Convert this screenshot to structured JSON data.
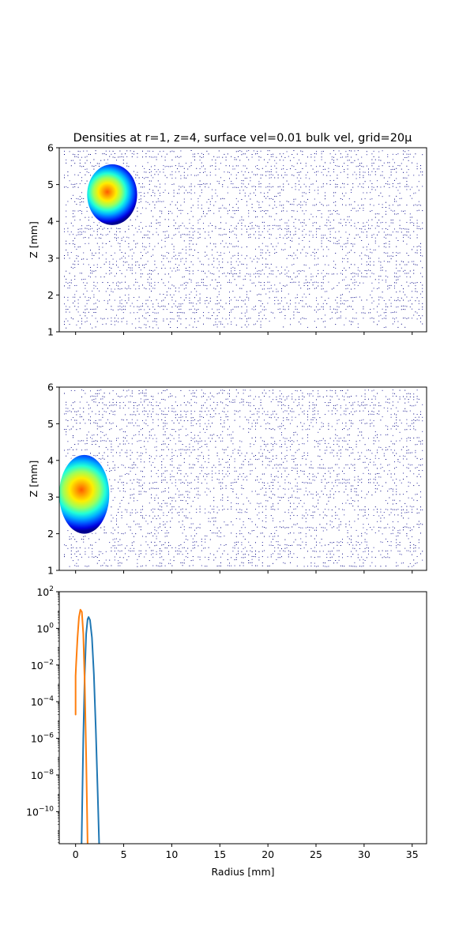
{
  "chart_data": [
    {
      "type": "heatmap",
      "title": "Densities at r=1, z=4, surface vel=0.01 bulk vel, grid=20μ",
      "ylabel": "Z [mm]",
      "xlabel": "",
      "xlim": [
        -1.7,
        36.5
      ],
      "ylim": [
        1,
        6
      ],
      "yticks": [
        1,
        2,
        3,
        4,
        5,
        6
      ],
      "xticks": [
        0,
        5,
        10,
        15,
        20,
        25,
        30,
        35
      ],
      "show_xticklabels": false,
      "colormap": "jet",
      "blob": {
        "r_center": 3.3,
        "z_center": 4.8,
        "r_extent": [
          1.2,
          6.4
        ],
        "z_extent": [
          3.9,
          5.55
        ]
      },
      "background": "sparse low-density noise (dark blue dots)"
    },
    {
      "type": "heatmap",
      "title": "",
      "ylabel": "Z [mm]",
      "xlabel": "",
      "xlim": [
        -1.7,
        36.5
      ],
      "ylim": [
        1,
        6
      ],
      "yticks": [
        1,
        2,
        3,
        4,
        5,
        6
      ],
      "xticks": [
        0,
        5,
        10,
        15,
        20,
        25,
        30,
        35
      ],
      "show_xticklabels": false,
      "colormap": "jet",
      "blob": {
        "r_center": 0.6,
        "z_center": 3.2,
        "r_extent": [
          -1.7,
          3.5
        ],
        "z_extent": [
          2.0,
          4.15
        ]
      },
      "background": "sparse low-density noise (dark blue dots)"
    },
    {
      "type": "line",
      "title": "",
      "xlabel": "Radius [mm]",
      "ylabel": "",
      "xlim": [
        -1.7,
        36.5
      ],
      "ylim_log10": [
        -11.75,
        2
      ],
      "yscale": "log",
      "xticks": [
        0,
        5,
        10,
        15,
        20,
        25,
        30,
        35
      ],
      "xticklabels": [
        "0",
        "5",
        "10",
        "15",
        "20",
        "25",
        "30",
        "35"
      ],
      "yticks_log10": [
        2,
        0,
        -2,
        -4,
        -6,
        -8,
        -10
      ],
      "yticklabels": [
        {
          "base": "10",
          "exp": "2"
        },
        {
          "base": "10",
          "exp": "0"
        },
        {
          "base": "10",
          "exp": "−2"
        },
        {
          "base": "10",
          "exp": "−4"
        },
        {
          "base": "10",
          "exp": "−6"
        },
        {
          "base": "10",
          "exp": "−8"
        },
        {
          "base": "10",
          "exp": "−10"
        }
      ],
      "series": [
        {
          "color": "#1f77b4",
          "points": [
            [
              0.62,
              -11.8
            ],
            [
              0.8,
              -6.0
            ],
            [
              0.95,
              -2.5
            ],
            [
              1.1,
              -0.3
            ],
            [
              1.25,
              0.5
            ],
            [
              1.35,
              0.62
            ],
            [
              1.5,
              0.45
            ],
            [
              1.7,
              -0.5
            ],
            [
              1.9,
              -2.5
            ],
            [
              2.1,
              -5.5
            ],
            [
              2.3,
              -9.0
            ],
            [
              2.45,
              -11.8
            ]
          ]
        },
        {
          "color": "#ff7f0e",
          "points": [
            [
              0.0,
              -3.35
            ],
            [
              0.0,
              -4.7
            ],
            [
              0.0,
              -2.6
            ],
            [
              0.05,
              -2.0
            ],
            [
              0.2,
              -0.5
            ],
            [
              0.35,
              0.6
            ],
            [
              0.5,
              1.02
            ],
            [
              0.65,
              0.9
            ],
            [
              0.8,
              -0.3
            ],
            [
              0.95,
              -3.0
            ],
            [
              1.1,
              -7.0
            ],
            [
              1.25,
              -11.8
            ]
          ]
        }
      ]
    }
  ]
}
